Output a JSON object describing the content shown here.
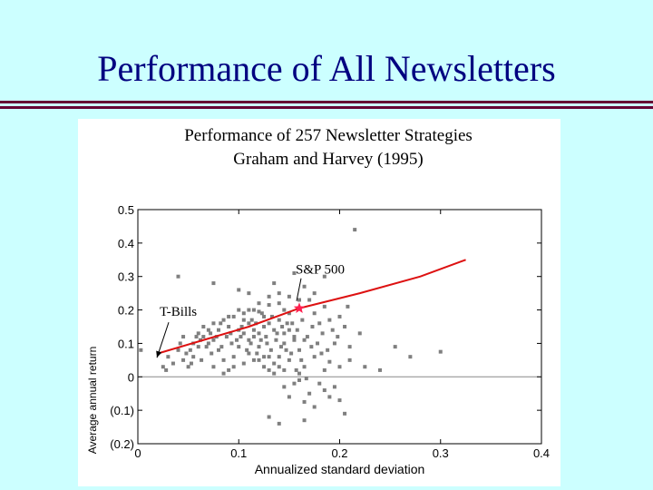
{
  "slide": {
    "title": "Performance of All Newsletters",
    "background": "#ccffff",
    "title_color": "#000080",
    "rule_color": "#660033"
  },
  "chart_data": {
    "type": "scatter",
    "title": "Performance of 257 Newsletter Strategies",
    "subtitle": "Graham and Harvey (1995)",
    "xlabel": "Annualized standard deviation",
    "ylabel": "Average annual return",
    "xlim": [
      0,
      0.4
    ],
    "ylim": [
      -0.2,
      0.5
    ],
    "x_ticks": [
      {
        "value": 0,
        "label": "0"
      },
      {
        "value": 0.1,
        "label": "0.1"
      },
      {
        "value": 0.2,
        "label": "0.2"
      },
      {
        "value": 0.3,
        "label": "0.3"
      },
      {
        "value": 0.4,
        "label": "0.4"
      }
    ],
    "y_ticks": [
      {
        "value": 0.5,
        "label": "0.5"
      },
      {
        "value": 0.4,
        "label": "0.4"
      },
      {
        "value": 0.3,
        "label": "0.3"
      },
      {
        "value": 0.2,
        "label": "0.2"
      },
      {
        "value": 0.1,
        "label": "0.1"
      },
      {
        "value": 0,
        "label": "0"
      },
      {
        "value": -0.1,
        "label": "(0.1)"
      },
      {
        "value": -0.2,
        "label": "(0.2)"
      }
    ],
    "grid": false,
    "zero_line": true,
    "point_color": "#7f7f7f",
    "line_color": "#dd1111",
    "star_color": "#ff1f4f",
    "efficient_line": {
      "x": [
        0.02,
        0.065,
        0.11,
        0.16,
        0.22,
        0.28,
        0.325
      ],
      "y": [
        0.07,
        0.11,
        0.15,
        0.205,
        0.25,
        0.3,
        0.35
      ]
    },
    "sp500": {
      "label": "S&P 500",
      "x": 0.16,
      "y": 0.205
    },
    "tbills": {
      "label": "T-Bills",
      "x": 0.018,
      "y": 0.06
    },
    "points": [
      [
        0.003,
        0.08
      ],
      [
        0.04,
        0.3
      ],
      [
        0.075,
        0.28
      ],
      [
        0.215,
        0.44
      ],
      [
        0.185,
        0.3
      ],
      [
        0.11,
        0.25
      ],
      [
        0.1,
        0.26
      ],
      [
        0.115,
        0.2
      ],
      [
        0.12,
        0.195
      ],
      [
        0.13,
        0.215
      ],
      [
        0.14,
        0.25
      ],
      [
        0.135,
        0.28
      ],
      [
        0.155,
        0.31
      ],
      [
        0.165,
        0.27
      ],
      [
        0.17,
        0.23
      ],
      [
        0.175,
        0.19
      ],
      [
        0.18,
        0.16
      ],
      [
        0.19,
        0.17
      ],
      [
        0.2,
        0.18
      ],
      [
        0.205,
        0.15
      ],
      [
        0.22,
        0.13
      ],
      [
        0.195,
        0.1
      ],
      [
        0.21,
        0.09
      ],
      [
        0.19,
        0.045
      ],
      [
        0.175,
        0.06
      ],
      [
        0.165,
        0.03
      ],
      [
        0.16,
        0.08
      ],
      [
        0.155,
        0.11
      ],
      [
        0.15,
        0.14
      ],
      [
        0.145,
        0.1
      ],
      [
        0.14,
        0.06
      ],
      [
        0.135,
        0.04
      ],
      [
        0.13,
        0.02
      ],
      [
        0.125,
        0.06
      ],
      [
        0.12,
        0.09
      ],
      [
        0.115,
        0.12
      ],
      [
        0.11,
        0.16
      ],
      [
        0.105,
        0.13
      ],
      [
        0.1,
        0.09
      ],
      [
        0.095,
        0.06
      ],
      [
        0.09,
        0.02
      ],
      [
        0.085,
        0.05
      ],
      [
        0.08,
        0.08
      ],
      [
        0.075,
        0.11
      ],
      [
        0.07,
        0.14
      ],
      [
        0.065,
        0.12
      ],
      [
        0.06,
        0.09
      ],
      [
        0.055,
        0.06
      ],
      [
        0.05,
        0.03
      ],
      [
        0.045,
        0.05
      ],
      [
        0.04,
        0.08
      ],
      [
        0.035,
        0.04
      ],
      [
        0.03,
        0.06
      ],
      [
        0.028,
        0.02
      ],
      [
        0.025,
        0.03
      ],
      [
        0.045,
        0.12
      ],
      [
        0.055,
        0.1
      ],
      [
        0.065,
        0.15
      ],
      [
        0.075,
        0.16
      ],
      [
        0.085,
        0.17
      ],
      [
        0.095,
        0.18
      ],
      [
        0.105,
        0.19
      ],
      [
        0.09,
        0.15
      ],
      [
        0.1,
        0.14
      ],
      [
        0.11,
        0.11
      ],
      [
        0.12,
        0.13
      ],
      [
        0.13,
        0.16
      ],
      [
        0.14,
        0.17
      ],
      [
        0.15,
        0.19
      ],
      [
        0.125,
        0.18
      ],
      [
        0.145,
        0.2
      ],
      [
        0.105,
        0.17
      ],
      [
        0.08,
        0.14
      ],
      [
        0.07,
        0.1
      ],
      [
        0.06,
        0.13
      ],
      [
        0.088,
        0.12
      ],
      [
        0.098,
        0.11
      ],
      [
        0.108,
        0.08
      ],
      [
        0.118,
        0.07
      ],
      [
        0.128,
        0.1
      ],
      [
        0.138,
        0.13
      ],
      [
        0.148,
        0.16
      ],
      [
        0.158,
        0.14
      ],
      [
        0.168,
        0.12
      ],
      [
        0.178,
        0.1
      ],
      [
        0.188,
        0.08
      ],
      [
        0.198,
        0.12
      ],
      [
        0.208,
        0.21
      ],
      [
        0.185,
        0.21
      ],
      [
        0.175,
        0.25
      ],
      [
        0.16,
        0.23
      ],
      [
        0.15,
        0.24
      ],
      [
        0.14,
        0.22
      ],
      [
        0.13,
        0.24
      ],
      [
        0.12,
        0.22
      ],
      [
        0.11,
        0.2
      ],
      [
        0.1,
        0.2
      ],
      [
        0.09,
        0.18
      ],
      [
        0.082,
        0.16
      ],
      [
        0.072,
        0.13
      ],
      [
        0.062,
        0.11
      ],
      [
        0.052,
        0.08
      ],
      [
        0.042,
        0.1
      ],
      [
        0.115,
        0.14
      ],
      [
        0.125,
        0.15
      ],
      [
        0.135,
        0.14
      ],
      [
        0.145,
        0.13
      ],
      [
        0.155,
        0.12
      ],
      [
        0.165,
        0.11
      ],
      [
        0.172,
        0.09
      ],
      [
        0.182,
        0.07
      ],
      [
        0.162,
        0.05
      ],
      [
        0.152,
        0.07
      ],
      [
        0.142,
        0.09
      ],
      [
        0.132,
        0.08
      ],
      [
        0.122,
        0.11
      ],
      [
        0.112,
        0.1
      ],
      [
        0.102,
        0.12
      ],
      [
        0.092,
        0.13
      ],
      [
        0.078,
        0.12
      ],
      [
        0.068,
        0.09
      ],
      [
        0.058,
        0.12
      ],
      [
        0.048,
        0.07
      ],
      [
        0.113,
        0.17
      ],
      [
        0.123,
        0.19
      ],
      [
        0.133,
        0.18
      ],
      [
        0.143,
        0.15
      ],
      [
        0.153,
        0.16
      ],
      [
        0.163,
        0.17
      ],
      [
        0.173,
        0.15
      ],
      [
        0.183,
        0.13
      ],
      [
        0.193,
        0.14
      ],
      [
        0.103,
        0.15
      ],
      [
        0.093,
        0.1
      ],
      [
        0.083,
        0.09
      ],
      [
        0.073,
        0.07
      ],
      [
        0.063,
        0.05
      ],
      [
        0.053,
        0.04
      ],
      [
        0.117,
        0.16
      ],
      [
        0.127,
        0.12
      ],
      [
        0.137,
        0.11
      ],
      [
        0.147,
        0.08
      ],
      [
        0.157,
        0.02
      ],
      [
        0.167,
        -0.005
      ],
      [
        0.16,
        -0.01
      ],
      [
        0.17,
        -0.05
      ],
      [
        0.175,
        -0.09
      ],
      [
        0.165,
        -0.13
      ],
      [
        0.14,
        -0.14
      ],
      [
        0.13,
        -0.12
      ],
      [
        0.145,
        -0.03
      ],
      [
        0.155,
        -0.02
      ],
      [
        0.15,
        -0.06
      ],
      [
        0.18,
        -0.02
      ],
      [
        0.185,
        -0.04
      ],
      [
        0.19,
        -0.06
      ],
      [
        0.2,
        -0.07
      ],
      [
        0.205,
        -0.11
      ],
      [
        0.165,
        -0.075
      ],
      [
        0.195,
        -0.03
      ],
      [
        0.185,
        0.02
      ],
      [
        0.2,
        0.03
      ],
      [
        0.21,
        0.05
      ],
      [
        0.225,
        0.03
      ],
      [
        0.24,
        0.02
      ],
      [
        0.255,
        0.09
      ],
      [
        0.27,
        0.06
      ],
      [
        0.3,
        0.075
      ],
      [
        0.135,
        0.01
      ],
      [
        0.145,
        0.02
      ],
      [
        0.125,
        0.03
      ],
      [
        0.115,
        0.05
      ],
      [
        0.105,
        0.04
      ],
      [
        0.095,
        0.03
      ],
      [
        0.085,
        0.01
      ],
      [
        0.075,
        0.03
      ],
      [
        0.11,
        0.07
      ],
      [
        0.12,
        0.05
      ],
      [
        0.13,
        0.06
      ],
      [
        0.14,
        0.03
      ],
      [
        0.15,
        0.05
      ],
      [
        0.16,
        0.01
      ]
    ]
  }
}
